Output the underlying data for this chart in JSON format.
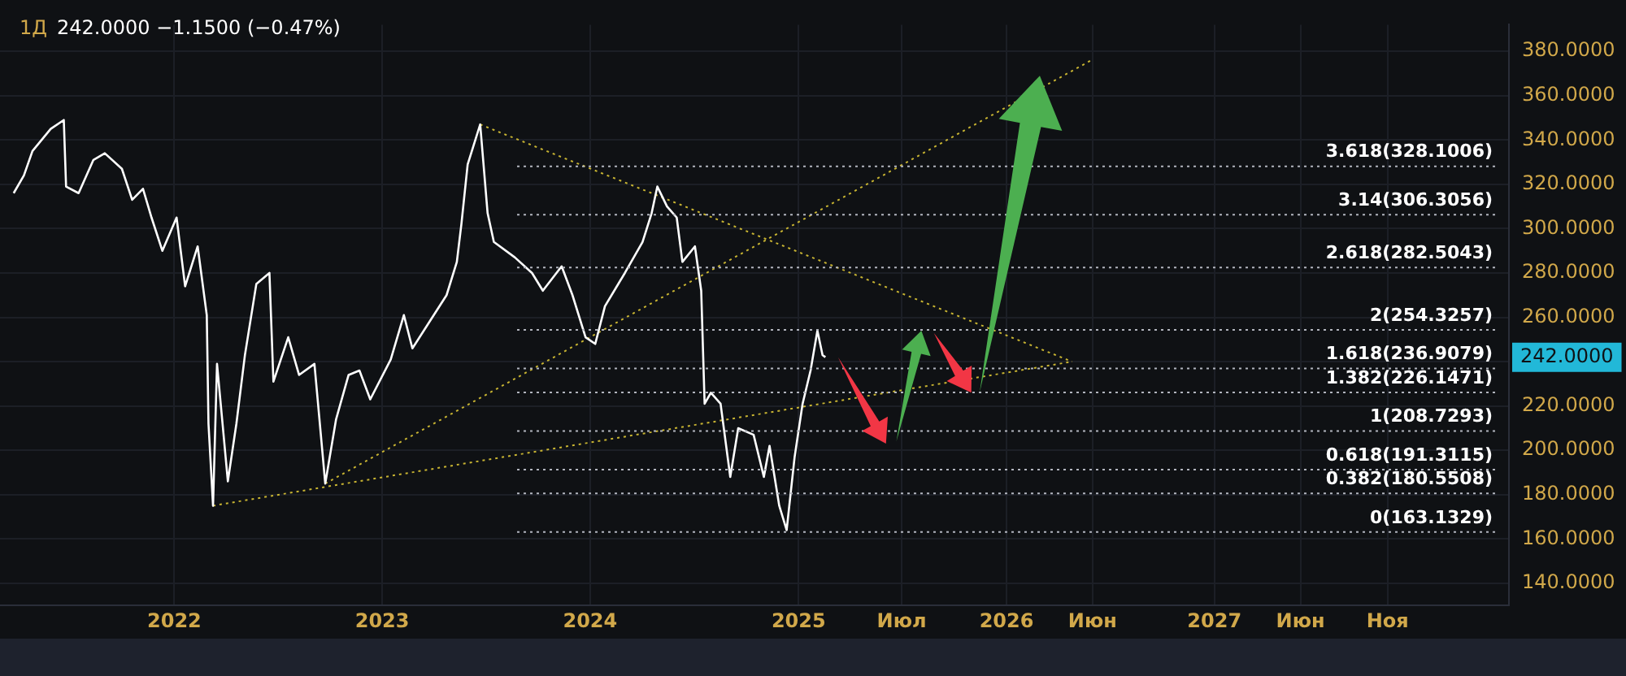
{
  "chart_data": {
    "type": "line",
    "title": "1Д",
    "subtitle": "242.0000 −1.1500 (−0.47%)",
    "legend": false,
    "grid": true,
    "marker": "none",
    "xlim": [
      "2021-03-01",
      "2028-06-01"
    ],
    "xticks": [
      {
        "value": "2022-01-01",
        "label": "2022"
      },
      {
        "value": "2023-01-01",
        "label": "2023"
      },
      {
        "value": "2024-01-01",
        "label": "2024"
      },
      {
        "value": "2025-01-01",
        "label": "2025"
      },
      {
        "value": "2025-07-01",
        "label": "Июл"
      },
      {
        "value": "2026-01-01",
        "label": "2026"
      },
      {
        "value": "2026-06-01",
        "label": "Июн"
      },
      {
        "value": "2027-01-01",
        "label": "2027"
      },
      {
        "value": "2027-06-01",
        "label": "Июн"
      },
      {
        "value": "2027-11-01",
        "label": "Ноя"
      }
    ],
    "ylim": [
      130,
      392
    ],
    "yticks": [
      {
        "value": 140,
        "label": "140.0000"
      },
      {
        "value": 160,
        "label": "160.0000"
      },
      {
        "value": 180,
        "label": "180.0000"
      },
      {
        "value": 200,
        "label": "200.0000"
      },
      {
        "value": 220,
        "label": "220.0000"
      },
      {
        "value": 240,
        "label": null
      },
      {
        "value": 260,
        "label": "260.0000"
      },
      {
        "value": 280,
        "label": "280.0000"
      },
      {
        "value": 300,
        "label": "300.0000"
      },
      {
        "value": 320,
        "label": "320.0000"
      },
      {
        "value": 340,
        "label": "340.0000"
      },
      {
        "value": 360,
        "label": "360.0000"
      },
      {
        "value": 380,
        "label": "380.0000"
      }
    ],
    "x": [
      "2021-03-25",
      "2021-04-12",
      "2021-04-27",
      "2021-05-29",
      "2021-06-21",
      "2021-06-25",
      "2021-07-17",
      "2021-08-12",
      "2021-09-01",
      "2021-10-01",
      "2021-10-19",
      "2021-11-07",
      "2021-11-22",
      "2021-12-11",
      "2022-01-05",
      "2022-01-20",
      "2022-02-11",
      "2022-02-27",
      "2022-03-02",
      "2022-03-10",
      "2022-03-17",
      "2022-04-05",
      "2022-04-20",
      "2022-05-05",
      "2022-05-25",
      "2022-06-17",
      "2022-06-24",
      "2022-07-20",
      "2022-08-08",
      "2022-09-04",
      "2022-09-23",
      "2022-10-12",
      "2022-11-03",
      "2022-11-22",
      "2022-12-11",
      "2023-01-16",
      "2023-02-08",
      "2023-02-23",
      "2023-03-25",
      "2023-04-24",
      "2023-05-12",
      "2023-05-20",
      "2023-05-31",
      "2023-06-22",
      "2023-07-05",
      "2023-07-16",
      "2023-08-22",
      "2023-09-21",
      "2023-10-10",
      "2023-11-12",
      "2023-12-01",
      "2023-12-24",
      "2024-01-10",
      "2024-01-27",
      "2024-03-02",
      "2024-04-02",
      "2024-04-18",
      "2024-04-28",
      "2024-05-15",
      "2024-06-01",
      "2024-06-11",
      "2024-07-03",
      "2024-07-14",
      "2024-07-20",
      "2024-07-31",
      "2024-08-17",
      "2024-09-03",
      "2024-09-17",
      "2024-10-14",
      "2024-11-01",
      "2024-11-11",
      "2024-11-28",
      "2024-12-11",
      "2024-12-25",
      "2025-01-08",
      "2025-01-22",
      "2025-02-03",
      "2025-02-12",
      "2025-02-17"
    ],
    "series": [
      {
        "color": "#ffffff",
        "line_style": "solid",
        "values": [
          316,
          324,
          335,
          345,
          349,
          319,
          316,
          331,
          334,
          327,
          313,
          318,
          305,
          290,
          305,
          274,
          292,
          261,
          212,
          175,
          239,
          186,
          212,
          243,
          275,
          280,
          231,
          251,
          234,
          239,
          185,
          214,
          234,
          236,
          223,
          241,
          261,
          246,
          258,
          270,
          285,
          302,
          329,
          347,
          307,
          294,
          287,
          280,
          272,
          283,
          270,
          251,
          248,
          265,
          280,
          294,
          307,
          319,
          310,
          305,
          285,
          292,
          272,
          221,
          226,
          221,
          188,
          210,
          207,
          188,
          202,
          175,
          164,
          197,
          221,
          236,
          254,
          243,
          242
        ]
      },
      {
        "color": "#c8b432",
        "line_style": "dotted",
        "x": [
          "2022-03-10",
          "2026-04-26"
        ],
        "values": [
          175,
          240
        ]
      },
      {
        "color": "#c8b432",
        "line_style": "dotted",
        "x": [
          "2022-09-23",
          "2026-05-30"
        ],
        "values": [
          185,
          376
        ]
      },
      {
        "color": "#c8b432",
        "line_style": "dotted",
        "x": [
          "2023-06-22",
          "2026-04-26"
        ],
        "values": [
          347,
          240
        ]
      }
    ],
    "ref_lines": [
      {
        "axis": "y",
        "value": 328.1006,
        "label": "3.618(328.1006)",
        "color": "#b2b5be",
        "line_style": "dotted"
      },
      {
        "axis": "y",
        "value": 306.3056,
        "label": "3.14(306.3056)",
        "color": "#b2b5be",
        "line_style": "dotted"
      },
      {
        "axis": "y",
        "value": 282.5043,
        "label": "2.618(282.5043)",
        "color": "#b2b5be",
        "line_style": "dotted"
      },
      {
        "axis": "y",
        "value": 254.3257,
        "label": "2(254.3257)",
        "color": "#b2b5be",
        "line_style": "dotted"
      },
      {
        "axis": "y",
        "value": 236.9079,
        "label": "1.618(236.9079)",
        "color": "#b2b5be",
        "line_style": "dotted"
      },
      {
        "axis": "y",
        "value": 226.1471,
        "label": "1.382(226.1471)",
        "color": "#b2b5be",
        "line_style": "dotted"
      },
      {
        "axis": "y",
        "value": 208.7293,
        "label": "1(208.7293)",
        "color": "#b2b5be",
        "line_style": "dotted"
      },
      {
        "axis": "y",
        "value": 191.3115,
        "label": "0.618(191.3115)",
        "color": "#b2b5be",
        "line_style": "dotted"
      },
      {
        "axis": "y",
        "value": 180.5508,
        "label": "0.382(180.5508)",
        "color": "#b2b5be",
        "line_style": "dotted"
      },
      {
        "axis": "y",
        "value": 163.1329,
        "label": "0(163.1329)",
        "color": "#b2b5be",
        "line_style": "dotted"
      }
    ],
    "annotations": [
      "242.0000"
    ]
  }
}
